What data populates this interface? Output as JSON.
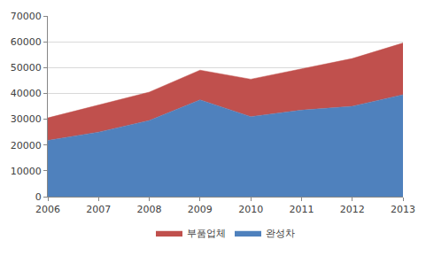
{
  "chart_data": {
    "type": "area",
    "stacked": true,
    "x": [
      2006,
      2007,
      2008,
      2009,
      2010,
      2011,
      2012,
      2013
    ],
    "series": [
      {
        "name": "완성차",
        "color": "#4f81bd",
        "values": [
          21800,
          25000,
          29500,
          37500,
          31000,
          33500,
          35000,
          39500
        ]
      },
      {
        "name": "부품업체",
        "color": "#c0504d",
        "values": [
          8700,
          10500,
          11000,
          11500,
          14500,
          16000,
          18500,
          20000
        ]
      }
    ],
    "xlim": [
      2006,
      2013
    ],
    "xticks": [
      2006,
      2007,
      2008,
      2009,
      2010,
      2011,
      2012,
      2013
    ],
    "ylim": [
      0,
      70000
    ],
    "yticks": [
      0,
      10000,
      20000,
      30000,
      40000,
      50000,
      60000,
      70000
    ],
    "grid": true,
    "legend": "bottom"
  }
}
